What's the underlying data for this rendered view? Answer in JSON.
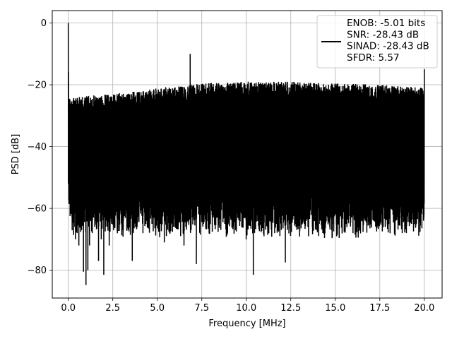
{
  "chart_data": {
    "type": "line",
    "xlabel": "Frequency [MHz]",
    "ylabel": "PSD [dB]",
    "xlim": [
      -0.9,
      21.0
    ],
    "ylim": [
      -89,
      4
    ],
    "xticks": [
      0.0,
      2.5,
      5.0,
      7.5,
      10.0,
      12.5,
      15.0,
      17.5,
      20.0
    ],
    "xtick_labels": [
      "0.0",
      "2.5",
      "5.0",
      "7.5",
      "10.0",
      "12.5",
      "15.0",
      "17.5",
      "20.0"
    ],
    "yticks": [
      0,
      -20,
      -40,
      -60,
      -80
    ],
    "ytick_labels": [
      "0",
      "−20",
      "−40",
      "−60",
      "−80"
    ],
    "grid": true,
    "legend_position": "top-right",
    "series": [
      {
        "name": "ENOB: -5.01 bits\nSNR: -28.43 dB\nSINAD: -28.43 dB\nSFDR: 5.57",
        "color": "#000000",
        "x_start": 0.0,
        "x_end": 20.0,
        "noise_ceiling": [
          [
            0.0,
            -24
          ],
          [
            2.5,
            -23
          ],
          [
            5.0,
            -21
          ],
          [
            7.5,
            -19.5
          ],
          [
            10.0,
            -19
          ],
          [
            12.5,
            -19
          ],
          [
            15.0,
            -19.5
          ],
          [
            17.5,
            -20
          ],
          [
            20.0,
            -21
          ]
        ],
        "noise_floor_typical": -64,
        "deep_minima": [
          [
            0.25,
            -63
          ],
          [
            0.4,
            -70
          ],
          [
            0.5,
            -68
          ],
          [
            0.6,
            -72
          ],
          [
            0.75,
            -67
          ],
          [
            0.85,
            -80.5
          ],
          [
            1.0,
            -84.8
          ],
          [
            1.1,
            -80
          ],
          [
            1.2,
            -72
          ],
          [
            1.35,
            -68
          ],
          [
            1.7,
            -77
          ],
          [
            1.85,
            -70
          ],
          [
            2.0,
            -81.5
          ],
          [
            2.3,
            -72
          ],
          [
            2.6,
            -66
          ],
          [
            2.9,
            -62
          ],
          [
            3.6,
            -77
          ],
          [
            4.2,
            -68
          ],
          [
            4.7,
            -65
          ],
          [
            5.4,
            -71
          ],
          [
            6.0,
            -66
          ],
          [
            6.5,
            -72
          ],
          [
            7.2,
            -78
          ],
          [
            7.6,
            -65
          ],
          [
            8.2,
            -63
          ],
          [
            8.8,
            -65
          ],
          [
            9.4,
            -67
          ],
          [
            10.0,
            -70
          ],
          [
            10.4,
            -81.5
          ],
          [
            11.0,
            -69
          ],
          [
            11.6,
            -68
          ],
          [
            12.2,
            -77.5
          ],
          [
            12.8,
            -66
          ],
          [
            13.5,
            -69
          ],
          [
            14.1,
            -65
          ],
          [
            14.8,
            -67
          ],
          [
            15.4,
            -63
          ],
          [
            16.0,
            -68
          ],
          [
            16.6,
            -63
          ],
          [
            17.2,
            -64
          ],
          [
            17.8,
            -66
          ],
          [
            18.4,
            -64
          ],
          [
            19.0,
            -68
          ],
          [
            19.5,
            -63
          ],
          [
            19.9,
            -60
          ]
        ],
        "peaks": [
          [
            0.0,
            0
          ],
          [
            6.85,
            -10
          ],
          [
            20.0,
            -15
          ]
        ]
      }
    ]
  }
}
